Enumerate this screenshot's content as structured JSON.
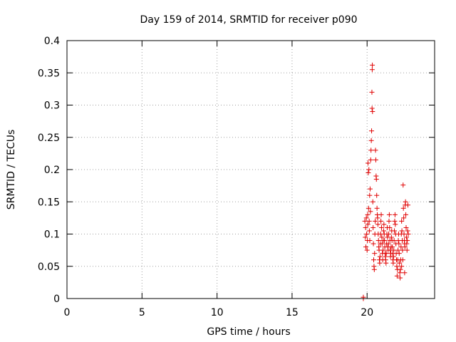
{
  "chart_data": {
    "type": "scatter",
    "title": "Day 159 of 2014, SRMTID for receiver p090",
    "xlabel": "GPS time / hours",
    "ylabel": "SRMTID / TECUs",
    "xlim": [
      0,
      24.5
    ],
    "ylim": [
      0,
      0.4
    ],
    "xticks": [
      0,
      5,
      10,
      15,
      20
    ],
    "xtick_labels": [
      "0",
      "5",
      "10",
      "15",
      "20"
    ],
    "yticks": [
      0,
      0.05,
      0.1,
      0.15,
      0.2,
      0.25,
      0.3,
      0.35,
      0.4
    ],
    "ytick_labels": [
      "0",
      "0.05",
      "0.1",
      "0.15",
      "0.2",
      "0.25",
      "0.3",
      "0.35",
      "0.4"
    ],
    "grid": true,
    "marker": "+",
    "color": "#e00000",
    "series": [
      {
        "name": "SRMTID",
        "points": [
          [
            19.75,
            0.0
          ],
          [
            19.75,
            0.002
          ],
          [
            19.85,
            0.12
          ],
          [
            19.88,
            0.095
          ],
          [
            19.9,
            0.11
          ],
          [
            19.92,
            0.08
          ],
          [
            19.95,
            0.125
          ],
          [
            19.97,
            0.1
          ],
          [
            20.0,
            0.075
          ],
          [
            20.02,
            0.09
          ],
          [
            20.04,
            0.13
          ],
          [
            20.05,
            0.115
          ],
          [
            20.06,
            0.21
          ],
          [
            20.08,
            0.195
          ],
          [
            20.1,
            0.14
          ],
          [
            20.12,
            0.2
          ],
          [
            20.14,
            0.12
          ],
          [
            20.15,
            0.105
          ],
          [
            20.17,
            0.16
          ],
          [
            20.18,
            0.09
          ],
          [
            20.2,
            0.17
          ],
          [
            20.22,
            0.135
          ],
          [
            20.24,
            0.215
          ],
          [
            20.26,
            0.23
          ],
          [
            20.28,
            0.245
          ],
          [
            20.3,
            0.26
          ],
          [
            20.32,
            0.32
          ],
          [
            20.33,
            0.295
          ],
          [
            20.34,
            0.355
          ],
          [
            20.35,
            0.362
          ],
          [
            20.36,
            0.29
          ],
          [
            20.38,
            0.15
          ],
          [
            20.4,
            0.11
          ],
          [
            20.42,
            0.085
          ],
          [
            20.44,
            0.06
          ],
          [
            20.46,
            0.05
          ],
          [
            20.48,
            0.045
          ],
          [
            20.5,
            0.07
          ],
          [
            20.52,
            0.1
          ],
          [
            20.54,
            0.12
          ],
          [
            20.56,
            0.23
          ],
          [
            20.58,
            0.215
          ],
          [
            20.6,
            0.19
          ],
          [
            20.62,
            0.185
          ],
          [
            20.64,
            0.16
          ],
          [
            20.66,
            0.14
          ],
          [
            20.68,
            0.13
          ],
          [
            20.7,
            0.125
          ],
          [
            20.72,
            0.115
          ],
          [
            20.74,
            0.1
          ],
          [
            20.76,
            0.09
          ],
          [
            20.78,
            0.08
          ],
          [
            20.8,
            0.075
          ],
          [
            20.82,
            0.06
          ],
          [
            20.84,
            0.055
          ],
          [
            20.86,
            0.065
          ],
          [
            20.88,
            0.085
          ],
          [
            20.9,
            0.1
          ],
          [
            20.92,
            0.12
          ],
          [
            20.94,
            0.13
          ],
          [
            20.96,
            0.11
          ],
          [
            20.98,
            0.095
          ],
          [
            21.0,
            0.085
          ],
          [
            21.02,
            0.07
          ],
          [
            21.04,
            0.06
          ],
          [
            21.06,
            0.075
          ],
          [
            21.08,
            0.09
          ],
          [
            21.1,
            0.105
          ],
          [
            21.12,
            0.115
          ],
          [
            21.14,
            0.1
          ],
          [
            21.16,
            0.09
          ],
          [
            21.18,
            0.08
          ],
          [
            21.2,
            0.07
          ],
          [
            21.22,
            0.065
          ],
          [
            21.24,
            0.06
          ],
          [
            21.26,
            0.055
          ],
          [
            21.28,
            0.07
          ],
          [
            21.3,
            0.085
          ],
          [
            21.32,
            0.1
          ],
          [
            21.34,
            0.11
          ],
          [
            21.36,
            0.095
          ],
          [
            21.38,
            0.08
          ],
          [
            21.4,
            0.075
          ],
          [
            21.42,
            0.085
          ],
          [
            21.44,
            0.1
          ],
          [
            21.46,
            0.12
          ],
          [
            21.48,
            0.13
          ],
          [
            21.5,
            0.11
          ],
          [
            21.52,
            0.09
          ],
          [
            21.54,
            0.075
          ],
          [
            21.56,
            0.065
          ],
          [
            21.58,
            0.07
          ],
          [
            21.6,
            0.08
          ],
          [
            21.62,
            0.095
          ],
          [
            21.64,
            0.105
          ],
          [
            21.66,
            0.09
          ],
          [
            21.68,
            0.08
          ],
          [
            21.7,
            0.07
          ],
          [
            21.72,
            0.06
          ],
          [
            21.74,
            0.055
          ],
          [
            21.76,
            0.065
          ],
          [
            21.78,
            0.075
          ],
          [
            21.8,
            0.09
          ],
          [
            21.82,
            0.105
          ],
          [
            21.84,
            0.12
          ],
          [
            21.86,
            0.13
          ],
          [
            21.88,
            0.115
          ],
          [
            21.9,
            0.1
          ],
          [
            21.92,
            0.085
          ],
          [
            21.94,
            0.07
          ],
          [
            21.96,
            0.06
          ],
          [
            21.98,
            0.05
          ],
          [
            22.0,
            0.035
          ],
          [
            22.02,
            0.045
          ],
          [
            22.04,
            0.06
          ],
          [
            22.06,
            0.075
          ],
          [
            22.08,
            0.09
          ],
          [
            22.1,
            0.1
          ],
          [
            22.12,
            0.085
          ],
          [
            22.14,
            0.07
          ],
          [
            22.16,
            0.055
          ],
          [
            22.18,
            0.04
          ],
          [
            22.2,
            0.032
          ],
          [
            22.22,
            0.045
          ],
          [
            22.24,
            0.06
          ],
          [
            22.26,
            0.08
          ],
          [
            22.28,
            0.1
          ],
          [
            22.3,
            0.12
          ],
          [
            22.32,
            0.105
          ],
          [
            22.34,
            0.09
          ],
          [
            22.36,
            0.075
          ],
          [
            22.38,
            0.06
          ],
          [
            22.4,
            0.176
          ],
          [
            22.42,
            0.14
          ],
          [
            22.44,
            0.125
          ],
          [
            22.46,
            0.1
          ],
          [
            22.48,
            0.09
          ],
          [
            22.5,
            0.085
          ],
          [
            22.52,
            0.08
          ],
          [
            22.54,
            0.145
          ],
          [
            22.56,
            0.15
          ],
          [
            22.58,
            0.13
          ],
          [
            22.6,
            0.11
          ],
          [
            22.62,
            0.095
          ],
          [
            22.64,
            0.085
          ],
          [
            22.66,
            0.075
          ],
          [
            22.68,
            0.09
          ],
          [
            22.7,
            0.105
          ],
          [
            22.72,
            0.145
          ],
          [
            22.74,
            0.1
          ],
          [
            22.5,
            0.04
          ],
          [
            22.3,
            0.05
          ]
        ]
      }
    ]
  }
}
